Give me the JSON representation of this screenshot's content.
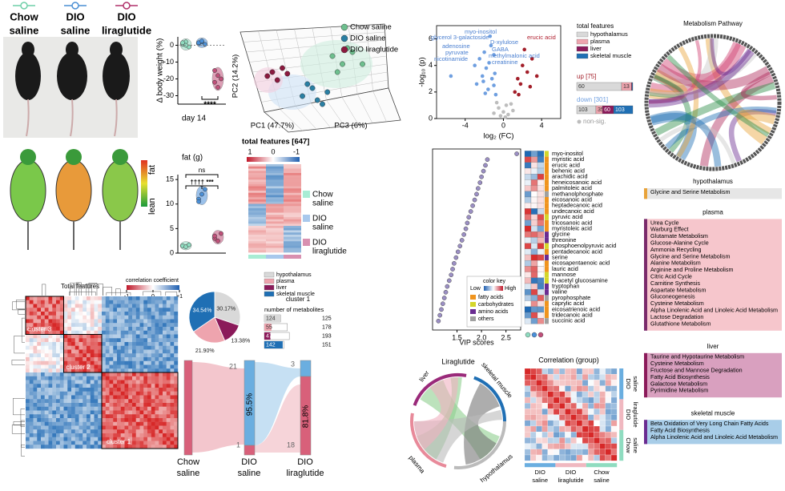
{
  "legend": [
    {
      "lines": [
        "Chow",
        "saline"
      ],
      "color": "#6fcfa8"
    },
    {
      "lines": [
        "DIO",
        "saline"
      ],
      "color": "#4a8fd4"
    },
    {
      "lines": [
        "DIO",
        "liraglutide"
      ],
      "color": "#b0306a"
    }
  ],
  "thermal": {
    "low": "lean",
    "high": "fat"
  },
  "chart_data": [
    {
      "type": "strip",
      "ylabel": "Δ body weight (%)",
      "xlabel": "day 14",
      "ylim": [
        -35,
        5
      ],
      "yticks": [
        0,
        -10,
        -20,
        -30
      ],
      "annotations": [
        "****"
      ],
      "series": [
        {
          "color": "#8fdcc0",
          "values": [
            0.5,
            2,
            -1,
            1.5,
            0
          ]
        },
        {
          "color": "#4a90d9",
          "values": [
            1,
            2,
            0.5,
            1.5,
            2.5
          ]
        },
        {
          "color": "#c0507a",
          "values": [
            -15,
            -18,
            -20,
            -22,
            -25
          ]
        }
      ]
    },
    {
      "type": "scatter",
      "xlabel": "PC1 (47.7%)",
      "ylabel": "PC2 (14.2%)",
      "zlabel": "PC3 (6%)",
      "xlim": [
        -6,
        6
      ],
      "ylim": [
        -4,
        5
      ],
      "series": [
        {
          "name": "Chow saline",
          "color": "#6dbf8e",
          "x": [
            2,
            3,
            4,
            2.5,
            5,
            3.5
          ],
          "values": [
            3,
            2,
            3.5,
            1,
            2,
            4
          ]
        },
        {
          "name": "DIO saline",
          "color": "#2a7fa3",
          "x": [
            -1,
            0,
            1,
            -0.5,
            0.5,
            1.5
          ],
          "values": [
            -2,
            -1,
            -3,
            -0.5,
            -2.5,
            -1.5
          ]
        },
        {
          "name": "DIO liraglutide",
          "color": "#8b1a3f",
          "x": [
            -4,
            -3.5,
            -3,
            -4.5,
            -2.5
          ],
          "values": [
            1,
            0,
            1.5,
            0.5,
            0.8
          ]
        }
      ]
    },
    {
      "type": "strip",
      "title": "fat (g)",
      "ylim": [
        0,
        16
      ],
      "yticks": [
        0,
        5,
        10,
        15
      ],
      "annotations": [
        "ns",
        "†††† ***"
      ],
      "series": [
        {
          "color": "#8fdcc0",
          "values": [
            1.5,
            1.3,
            1.7
          ]
        },
        {
          "color": "#4a90d9",
          "values": [
            11,
            12,
            13,
            10.5
          ]
        },
        {
          "color": "#c0507a",
          "values": [
            3,
            2.5,
            4,
            3.5
          ]
        }
      ]
    },
    {
      "type": "scatter",
      "xlabel": "log₂ (FC)",
      "ylabel": "-log₁₀ (p)",
      "xlim": [
        -7,
        6
      ],
      "ylim": [
        0,
        7
      ],
      "xticks": [
        -4,
        0,
        4
      ],
      "yticks": [
        0,
        2,
        4,
        6
      ],
      "annotations": [
        "myo-inositol",
        "glycerol 3-galactoside",
        "D-xylulose",
        "adenosine",
        "GABA",
        "pyruvate",
        "methylmalonic acid",
        "nicotinamide",
        "creatinine",
        "erucic acid"
      ],
      "legend_title": "total features",
      "tissues": [
        {
          "name": "hypothalamus",
          "color": "#d9d9d9"
        },
        {
          "name": "plasma",
          "color": "#eea4ae"
        },
        {
          "name": "liver",
          "color": "#8b1a5a"
        },
        {
          "name": "skeletal muscle",
          "color": "#1f6fb4"
        }
      ],
      "up_counts": [
        60,
        13,
        1,
        1
      ],
      "down_counts": [
        103,
        35,
        60,
        103
      ],
      "series": [
        {
          "name": "up [75]",
          "color": "#a31f2a",
          "x": [
            1.5,
            2,
            2.5,
            1.2,
            3,
            1.8,
            2.2,
            3.5,
            1.6,
            2.8
          ],
          "values": [
            3,
            4,
            3.5,
            2,
            4.5,
            2.6,
            5.2,
            3.2,
            1.8,
            2.4
          ]
        },
        {
          "name": "down [301]",
          "color": "#6f9fe0",
          "x": [
            -1.2,
            -1.5,
            -2,
            -1,
            -1.8,
            -2.5,
            -0.8,
            -1.3,
            -2.2,
            -1.6,
            -3,
            -1,
            -2.8,
            -1.4,
            -5.5,
            -1.9,
            -0.9,
            -2.1
          ],
          "values": [
            3,
            4.2,
            5,
            2.5,
            3.8,
            4.5,
            1.8,
            5.5,
            3.2,
            2.2,
            4,
            4.8,
            2.6,
            6.2,
            3.2,
            1.9,
            3.4,
            2.8
          ]
        },
        {
          "name": "non-sig.",
          "color": "#bdbdbd",
          "x": [
            0,
            0.5,
            -0.5,
            0.3,
            -0.3,
            1,
            -1,
            0.8,
            -0.7,
            0.2
          ],
          "values": [
            0.5,
            0.3,
            0.8,
            1,
            0.2,
            0.6,
            0.4,
            1.1,
            1.2,
            0.1
          ]
        }
      ]
    },
    {
      "type": "dot",
      "xlabel": "VIP scores",
      "xlim": [
        1.0,
        2.8
      ],
      "xticks": [
        1.5,
        {
          "value": 2,
          "label": "2.0"
        },
        2.5
      ],
      "color": "#9b8fc4",
      "categories": [
        "myo-inositol",
        "myristic acid",
        "erucic acid",
        "behenic acid",
        "arachidic acid",
        "heneicosanoic acid",
        "palmitoleic acid",
        "methanolphosphate",
        "eicosanoic acid",
        "heptadecanoic acid",
        "undecanoic acid",
        "pyruvic acid",
        "tricosanoic acid",
        "myristoleic acid",
        "glycine",
        "threonine",
        "phosphoenolpyruvic acid",
        "pentadecanoic acid",
        "serine",
        "eicosapentaenoic acid",
        "lauric acid",
        "mannose",
        "N-acetyl glucosamine",
        "tryptophan",
        "valine",
        "pyrophosphate",
        "caprylic acid",
        "eicosatrienoic acid",
        "tridecanoic acid",
        "succinic acid"
      ],
      "values": [
        2.72,
        2.12,
        2.08,
        2.04,
        2.0,
        1.97,
        1.93,
        1.9,
        1.86,
        1.82,
        1.78,
        1.74,
        1.71,
        1.68,
        1.64,
        1.6,
        1.56,
        1.52,
        1.48,
        1.44,
        1.41,
        1.38,
        1.34,
        1.3,
        1.27,
        1.24,
        1.21,
        1.18,
        1.15,
        1.12
      ],
      "classes": [
        "carbohydrates",
        "fatty acids",
        "fatty acids",
        "fatty acids",
        "fatty acids",
        "fatty acids",
        "fatty acids",
        "others",
        "fatty acids",
        "fatty acids",
        "fatty acids",
        "carbohydrates",
        "fatty acids",
        "fatty acids",
        "amino acids",
        "amino acids",
        "carbohydrates",
        "fatty acids",
        "amino acids",
        "fatty acids",
        "fatty acids",
        "carbohydrates",
        "carbohydrates",
        "amino acids",
        "amino acids",
        "others",
        "fatty acids",
        "fatty acids",
        "fatty acids",
        "others"
      ],
      "key_title": "color key",
      "key_low": "Low",
      "key_high": "High",
      "class_names": [
        "fatty acids",
        "carbohydrates",
        "amino acids",
        "others"
      ],
      "class_colors": [
        "#f0941e",
        "#d4d62a",
        "#6a2c91",
        "#a0a0a0"
      ]
    },
    {
      "type": "pie",
      "title": "cluster 1",
      "categories": [
        "hypothalamus",
        "liver",
        "plasma",
        "skeletal muscle"
      ],
      "values": [
        30.17,
        13.38,
        21.9,
        34.54
      ],
      "value_labels": [
        "30.17%",
        "13.38%",
        "21.90%",
        "34.54%"
      ],
      "colors": [
        "#d9d9d9",
        "#8b1a5a",
        "#eea4ae",
        "#1f6fb4"
      ]
    },
    {
      "type": "bar",
      "title": "number of metabolites",
      "categories": [
        "hypothalamus",
        "plasma",
        "liver",
        "skeletal muscle"
      ],
      "values": [
        124,
        55,
        47,
        142
      ],
      "totals": [
        125,
        178,
        193,
        151
      ],
      "colors": [
        "#d9d9d9",
        "#eea4ae",
        "#8b1a5a",
        "#1f6fb4"
      ],
      "xlim": [
        0,
        200
      ]
    }
  ],
  "heatmap": {
    "title": "total features [647]",
    "ticks": [
      1,
      0,
      -1
    ],
    "groups": [
      {
        "lines": [
          "Chow",
          "saline"
        ],
        "color": "#a8ecd4"
      },
      {
        "lines": [
          "DIO",
          "saline"
        ],
        "color": "#a8c8ec"
      },
      {
        "lines": [
          "DIO",
          "liraglutide"
        ],
        "color": "#d890b0"
      }
    ]
  },
  "correlation": {
    "title": "Total features",
    "colorbar_title": "correlation coefficient",
    "ticks": [
      -1,
      0,
      {
        "value": 1,
        "label": "+1"
      }
    ],
    "clusters": [
      "cluster 1",
      "cluster 2",
      "cluster 3"
    ]
  },
  "sankey": {
    "groups": [
      [
        "Chow",
        "saline"
      ],
      [
        "DIO",
        "saline"
      ],
      [
        "DIO",
        "liraglutide"
      ]
    ],
    "flows": [
      21,
      1,
      3,
      18
    ],
    "percents": [
      "95.5%",
      "81.8%"
    ]
  },
  "chord": {
    "title": "Liraglutide",
    "labels": [
      "liver",
      "skeletal muscle",
      "hypothalamus",
      "plasma"
    ]
  },
  "group_corr": {
    "title": "Correlation (group)",
    "groups": [
      [
        "DIO",
        "saline"
      ],
      [
        "DIO",
        "liraglutide"
      ],
      [
        "Chow",
        "saline"
      ]
    ]
  },
  "pathways": {
    "title": "Metabolism Pathway",
    "sections": [
      {
        "name": "hypothalamus",
        "color": "#e8a33a",
        "fill": "#e6e6e6",
        "items": [
          "Glycine and Serine Metabolism"
        ]
      },
      {
        "name": "plasma",
        "color": "#7a2a6a",
        "fill": "#f6c6cc",
        "items": [
          "Urea Cycle",
          "Warburg Effect",
          "Glutamate Metabolism",
          "Glucose-Alanine Cycle",
          "Ammonia Recycling",
          "Glycine and Serine Metabolism",
          "Alanine Metabolism",
          "Arginine and Proline Metabolism",
          "Citric Acid Cycle",
          "Carnitine Synthesis",
          "Aspartate Metabolism",
          "Gluconeogenesis",
          "Cysteine Metabolism",
          "Alpha Linolenic Acid and Linoleic Acid Metabolism",
          "Lactose Degradation",
          "Glutathione Metabolism"
        ]
      },
      {
        "name": "liver",
        "color": "#8b1a5a",
        "fill": "#d9a0bf",
        "items": [
          "Taurine and Hypotaurine Metabolism",
          "Cysteine Metabolism",
          "Fructose and Mannose Degradation",
          "Fatty Acid Biosynthesis",
          "Galactose Metabolism",
          "Pyrimidine Metabolism"
        ]
      },
      {
        "name": "skeletal muscle",
        "color": "#6a2c91",
        "fill": "#a8cde8",
        "items": [
          "Beta Oxidation of Very Long Chain Fatty Acids",
          "Fatty Acid Biosynthesis",
          "Alpha Linolenic Acid and Linoleic Acid Metabolism"
        ]
      }
    ]
  }
}
